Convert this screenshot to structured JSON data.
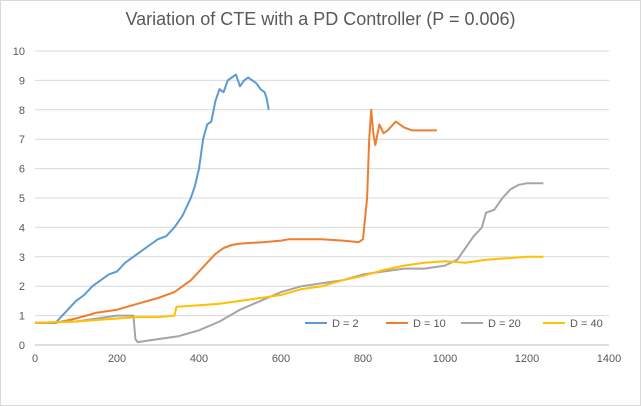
{
  "chart_data": {
    "type": "line",
    "title": "Variation of CTE with a PD Controller (P = 0.006)",
    "xlabel": "",
    "ylabel": "",
    "xlim": [
      0,
      1400
    ],
    "ylim": [
      0,
      10
    ],
    "x_ticks": [
      0,
      200,
      400,
      600,
      800,
      1000,
      1200,
      1400
    ],
    "y_ticks": [
      0,
      1,
      2,
      3,
      4,
      5,
      6,
      7,
      8,
      9,
      10
    ],
    "grid": "horizontal",
    "legend_position": "bottom-right inside",
    "series": [
      {
        "name": "D = 2",
        "color": "#5b9bd5",
        "x": [
          0,
          50,
          60,
          80,
          100,
          120,
          140,
          160,
          180,
          200,
          220,
          240,
          260,
          280,
          300,
          320,
          340,
          360,
          380,
          390,
          400,
          410,
          420,
          430,
          440,
          450,
          460,
          470,
          480,
          490,
          500,
          510,
          520,
          530,
          540,
          550,
          560,
          565,
          570
        ],
        "y": [
          0.75,
          0.75,
          0.9,
          1.2,
          1.5,
          1.7,
          2.0,
          2.2,
          2.4,
          2.5,
          2.8,
          3.0,
          3.2,
          3.4,
          3.6,
          3.7,
          4.0,
          4.4,
          5.0,
          5.4,
          6.0,
          7.0,
          7.5,
          7.6,
          8.3,
          8.7,
          8.6,
          9.0,
          9.1,
          9.2,
          8.8,
          9.0,
          9.1,
          9.0,
          8.9,
          8.7,
          8.6,
          8.4,
          8.0
        ]
      },
      {
        "name": "D = 10",
        "color": "#ed7d31",
        "x": [
          0,
          50,
          100,
          150,
          200,
          250,
          300,
          340,
          360,
          380,
          400,
          420,
          440,
          460,
          480,
          500,
          560,
          600,
          620,
          700,
          750,
          790,
          800,
          810,
          815,
          820,
          825,
          830,
          840,
          850,
          860,
          880,
          900,
          920,
          940,
          960,
          980
        ],
        "y": [
          0.75,
          0.75,
          0.9,
          1.1,
          1.2,
          1.4,
          1.6,
          1.8,
          2.0,
          2.2,
          2.5,
          2.8,
          3.1,
          3.3,
          3.4,
          3.45,
          3.5,
          3.55,
          3.6,
          3.6,
          3.55,
          3.5,
          3.6,
          5.0,
          7.0,
          8.0,
          7.2,
          6.8,
          7.5,
          7.2,
          7.3,
          7.6,
          7.4,
          7.3,
          7.3,
          7.3,
          7.3
        ]
      },
      {
        "name": "D = 20",
        "color": "#a5a5a5",
        "x": [
          0,
          100,
          200,
          240,
          245,
          250,
          300,
          350,
          400,
          450,
          500,
          550,
          600,
          650,
          700,
          750,
          800,
          850,
          900,
          950,
          1000,
          1030,
          1050,
          1070,
          1090,
          1100,
          1120,
          1140,
          1160,
          1180,
          1200,
          1220,
          1240
        ],
        "y": [
          0.75,
          0.8,
          1.0,
          1.0,
          0.2,
          0.1,
          0.2,
          0.3,
          0.5,
          0.8,
          1.2,
          1.5,
          1.8,
          2.0,
          2.1,
          2.2,
          2.4,
          2.5,
          2.6,
          2.6,
          2.7,
          2.9,
          3.3,
          3.7,
          4.0,
          4.5,
          4.6,
          5.0,
          5.3,
          5.45,
          5.5,
          5.5,
          5.5
        ]
      },
      {
        "name": "D = 40",
        "color": "#ffc000",
        "x": [
          0,
          100,
          200,
          250,
          300,
          340,
          345,
          400,
          450,
          500,
          550,
          600,
          650,
          700,
          750,
          800,
          850,
          900,
          950,
          1000,
          1050,
          1100,
          1150,
          1200,
          1240
        ],
        "y": [
          0.75,
          0.8,
          0.9,
          0.95,
          0.95,
          1.0,
          1.3,
          1.35,
          1.4,
          1.5,
          1.6,
          1.7,
          1.9,
          2.0,
          2.2,
          2.35,
          2.55,
          2.7,
          2.8,
          2.85,
          2.8,
          2.9,
          2.95,
          3.0,
          3.0
        ]
      }
    ]
  }
}
